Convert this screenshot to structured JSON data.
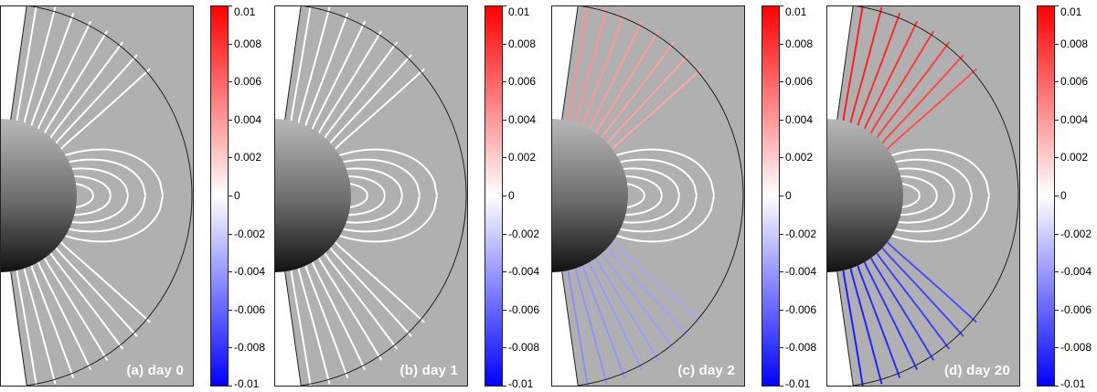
{
  "colorbar": {
    "ticks": [
      "0.01",
      "0.008",
      "0.006",
      "0.004",
      "0.002",
      "0",
      "-0.002",
      "-0.004",
      "-0.006",
      "-0.008",
      "-0.01"
    ],
    "colors": {
      "top": "#ff0000",
      "middle": "#ffffff",
      "bottom": "#0000ff"
    },
    "range": [
      -0.01,
      0.01
    ]
  },
  "panels": [
    {
      "label": "(a) day 0",
      "twist": 0.0
    },
    {
      "label": "(b) day 1",
      "twist": 0.0
    },
    {
      "label": "(c) day 2",
      "twist": 0.0045
    },
    {
      "label": "(d) day 20",
      "twist": 0.009
    }
  ],
  "colors": {
    "background": "#b0b0b0",
    "field_line": "#ffffff",
    "sun_light": "#b8b8b8",
    "sun_dark": "#111111"
  }
}
